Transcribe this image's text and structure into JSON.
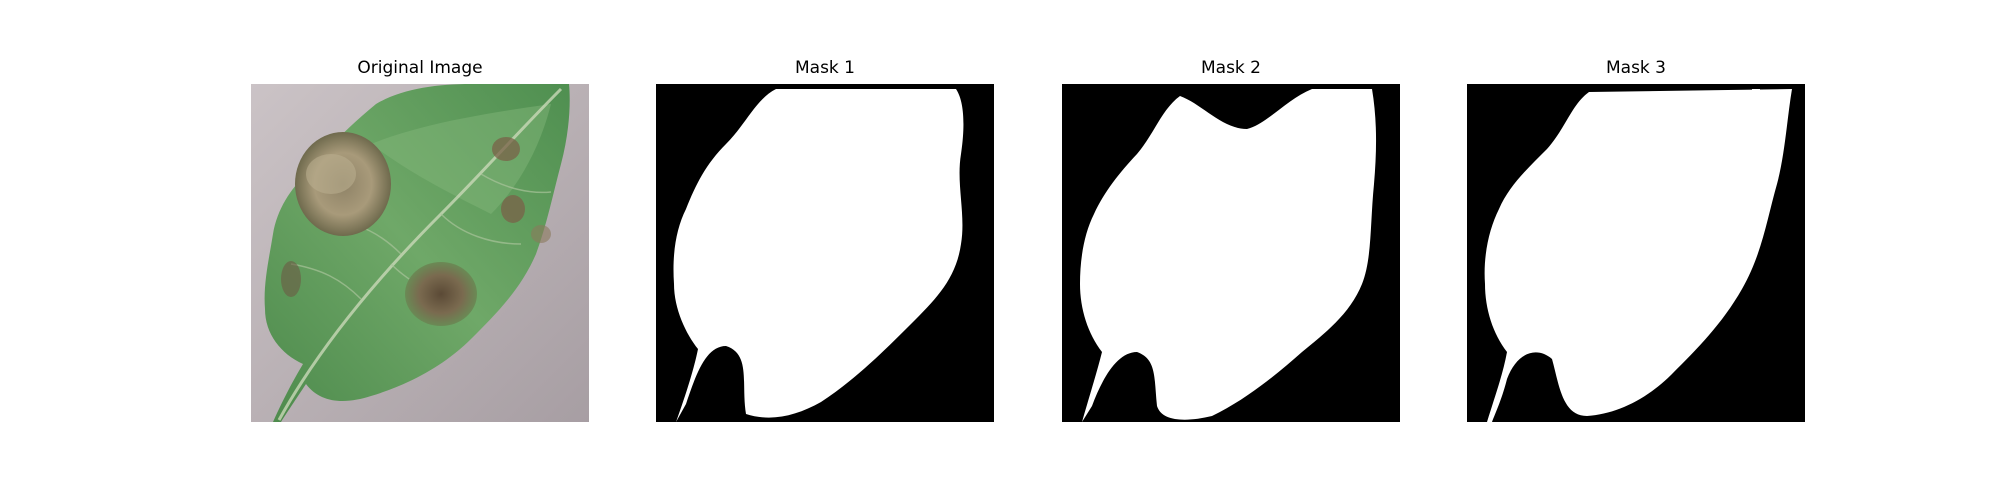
{
  "panels": [
    {
      "title": "Original Image",
      "kind": "photo"
    },
    {
      "title": "Mask 1",
      "kind": "mask"
    },
    {
      "title": "Mask 2",
      "kind": "mask"
    },
    {
      "title": "Mask 3",
      "kind": "mask"
    }
  ],
  "colors": {
    "background": "#ffffff",
    "mask_background": "#000000",
    "mask_foreground": "#ffffff",
    "photo_surface": "#b8b0b3",
    "leaf_green": "#5f9a5a",
    "lesion_tan": "#a89a7a"
  }
}
